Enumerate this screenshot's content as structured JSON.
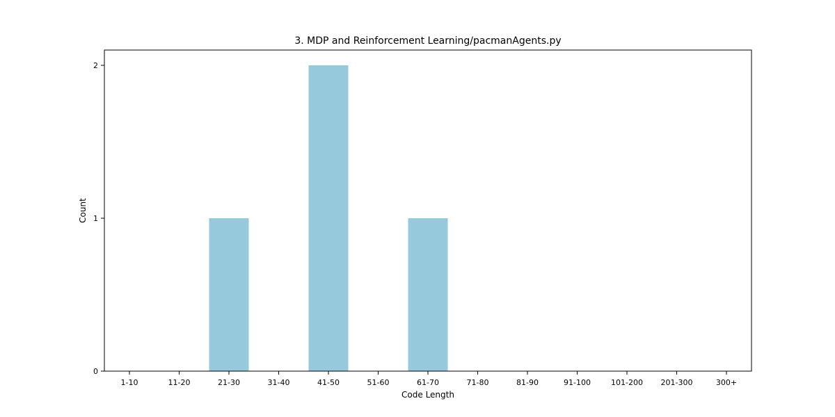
{
  "chart_data": {
    "type": "bar",
    "title": "3. MDP and Reinforcement Learning/pacmanAgents.py",
    "xlabel": "Code Length",
    "ylabel": "Count",
    "categories": [
      "1-10",
      "11-20",
      "21-30",
      "31-40",
      "41-50",
      "51-60",
      "61-70",
      "71-80",
      "81-90",
      "91-100",
      "101-200",
      "201-300",
      "300+"
    ],
    "values": [
      0,
      0,
      1,
      0,
      2,
      0,
      1,
      0,
      0,
      0,
      0,
      0,
      0
    ],
    "ylim": [
      0,
      2.1
    ],
    "yticks": [
      0,
      1,
      2
    ],
    "grid": false,
    "legend": "none",
    "bar_color": "#96c9dc"
  }
}
